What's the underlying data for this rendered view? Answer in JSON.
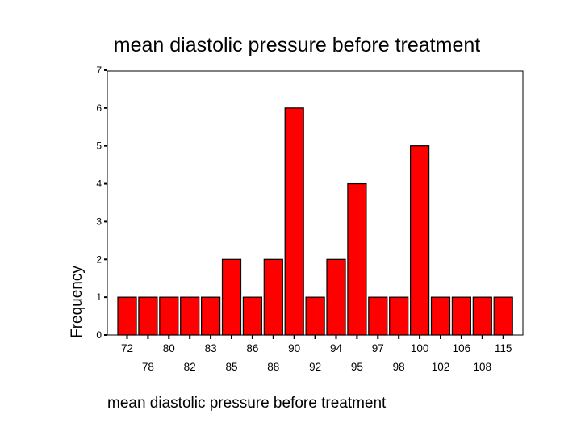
{
  "chart_data": {
    "type": "bar",
    "title": "mean diastolic pressure before treatment",
    "xlabel": "mean diastolic pressure before treatment",
    "ylabel": "Frequency",
    "ylim": [
      0,
      7
    ],
    "yticks": [
      0,
      1,
      2,
      3,
      4,
      5,
      6,
      7
    ],
    "grid": false,
    "legend": "none",
    "categories": [
      "72",
      "78",
      "80",
      "82",
      "83",
      "85",
      "86",
      "88",
      "90",
      "92",
      "94",
      "95",
      "97",
      "98",
      "100",
      "102",
      "106",
      "108",
      "115"
    ],
    "values": [
      1,
      1,
      1,
      1,
      1,
      2,
      1,
      2,
      6,
      1,
      2,
      4,
      1,
      1,
      5,
      1,
      1,
      1,
      1
    ],
    "colors": {
      "bar_fill": "#ff0000",
      "bar_stroke": "#000000",
      "axis": "#000000",
      "background": "#ffffff"
    }
  }
}
